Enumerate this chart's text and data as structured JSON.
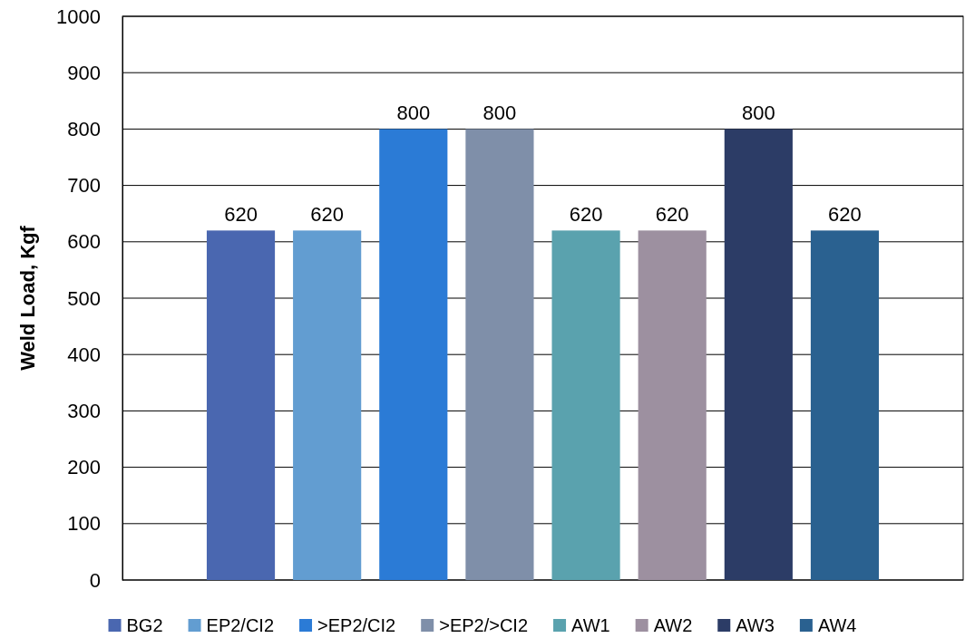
{
  "chart_data": {
    "type": "bar",
    "ylabel": "Weld Load, Kgf",
    "categories": [
      null
    ],
    "series": [
      {
        "name": "BG2",
        "color": "#4a67b0",
        "values": [
          620
        ]
      },
      {
        "name": "EP2/CI2",
        "color": "#629dd1",
        "values": [
          620
        ]
      },
      {
        "name": ">EP2/CI2",
        "color": "#2b7bd6",
        "values": [
          800
        ]
      },
      {
        "name": ">EP2/>CI2",
        "color": "#7f8fa9",
        "values": [
          800
        ]
      },
      {
        "name": "AW1",
        "color": "#5aa2ae",
        "values": [
          620
        ]
      },
      {
        "name": "AW2",
        "color": "#9d90a0",
        "values": [
          620
        ]
      },
      {
        "name": "AW3",
        "color": "#2c3c66",
        "values": [
          800
        ]
      },
      {
        "name": "AW4",
        "color": "#2a6190",
        "values": [
          620
        ]
      }
    ],
    "ylim": [
      0,
      1000
    ],
    "yticks": [
      0,
      100,
      200,
      300,
      400,
      500,
      600,
      700,
      800,
      900,
      1000
    ],
    "grid": "y",
    "data_labels": true,
    "legend": "bottom"
  }
}
